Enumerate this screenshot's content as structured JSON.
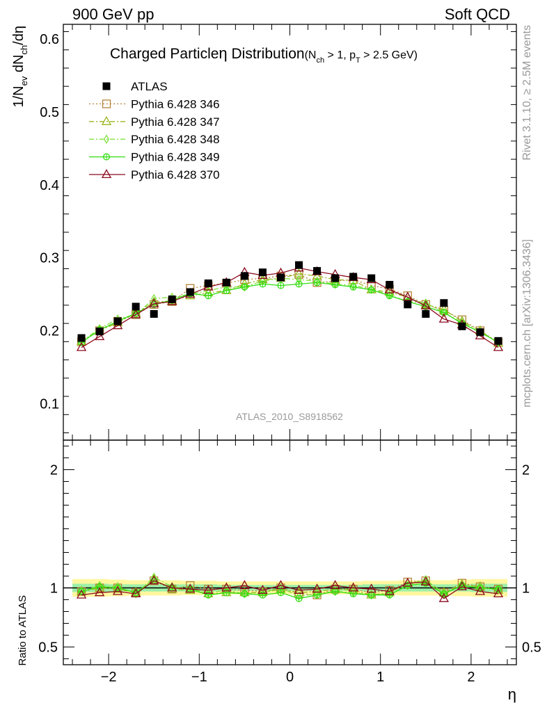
{
  "header": {
    "left": "900 GeV pp",
    "right": "Soft QCD"
  },
  "side_labels": {
    "rivet": "Rivet 3.1.10, ≥ 2.5M events",
    "mcplots": "mcplots.cern.ch [arXiv:1306.3436]"
  },
  "colors": {
    "atlas": "#000000",
    "p346": "#b5833a",
    "p347": "#9ab51d",
    "p348": "#7fe23b",
    "p349": "#33dd11",
    "p370": "#8b0a1e",
    "band_outer": "#fff7a0",
    "band_inner": "#9ef0a8",
    "watermark": "#999999"
  },
  "chart_data": {
    "type": "line",
    "title_main": "Charged Particle",
    "title_eta": "η",
    "title_rest": " Distribution",
    "title_sub": "(N",
    "title_sub_ch": "ch",
    "title_sub_mid": " > 1, p",
    "title_sub_T": "T",
    "title_sub_end": " > 2.5 GeV)",
    "ylabel_main": "1/N",
    "ylabel_ev": "ev",
    "ylabel_dN": " dN",
    "ylabel_ch": "ch",
    "ylabel_end": "/dη",
    "xlabel": "η",
    "ratio_ylabel": "Ratio to ATLAS",
    "watermark": "ATLAS_2010_S8918562",
    "xlim": [
      -2.5,
      2.5
    ],
    "ylim": [
      0.05,
      0.62
    ],
    "ratio_ylim": [
      0.35,
      2.25
    ],
    "x_ticks": [
      -2,
      -1,
      0,
      1,
      2
    ],
    "x_tick_labels": [
      "−2",
      "−1",
      "0",
      "1",
      "2"
    ],
    "y_ticks": [
      0.1,
      0.2,
      0.3,
      0.4,
      0.5,
      0.6
    ],
    "y_tick_labels": [
      "0.1",
      "0.2",
      "0.3",
      "0.4",
      "0.5",
      "0.6"
    ],
    "ratio_ticks": [
      0.5,
      1,
      2
    ],
    "ratio_tick_labels": [
      "0.5",
      "1",
      "2"
    ],
    "legend_position": "top-left",
    "x": [
      -2.3,
      -2.1,
      -1.9,
      -1.7,
      -1.5,
      -1.3,
      -1.1,
      -0.9,
      -0.7,
      -0.5,
      -0.3,
      -0.1,
      0.1,
      0.3,
      0.5,
      0.7,
      0.9,
      1.1,
      1.3,
      1.5,
      1.7,
      1.9,
      2.1,
      2.3
    ],
    "series": [
      {
        "name": "ATLAS",
        "key": "atlas",
        "marker": "square",
        "values": [
          0.19,
          0.199,
          0.213,
          0.233,
          0.223,
          0.243,
          0.253,
          0.265,
          0.266,
          0.275,
          0.28,
          0.273,
          0.29,
          0.282,
          0.272,
          0.274,
          0.272,
          0.263,
          0.236,
          0.223,
          0.238,
          0.206,
          0.198,
          0.186
        ],
        "ratio": [
          1.0,
          1.0,
          1.0,
          1.0,
          1.0,
          1.0,
          1.0,
          1.0,
          1.0,
          1.0,
          1.0,
          1.0,
          1.0,
          1.0,
          1.0,
          1.0,
          1.0,
          1.0,
          1.0,
          1.0,
          1.0,
          1.0,
          1.0,
          1.0
        ]
      },
      {
        "name": "Pythia 6.428 346",
        "key": "p346",
        "marker": "open-square",
        "values": [
          0.185,
          0.2,
          0.213,
          0.222,
          0.236,
          0.24,
          0.258,
          0.262,
          0.265,
          0.27,
          0.272,
          0.275,
          0.277,
          0.266,
          0.268,
          0.27,
          0.262,
          0.257,
          0.248,
          0.236,
          0.228,
          0.215,
          0.2,
          0.184
        ],
        "ratio": [
          0.97,
          1.0,
          1.0,
          0.96,
          1.06,
          0.99,
          1.02,
          0.99,
          0.99,
          0.98,
          0.97,
          1.0,
          0.95,
          0.94,
          0.99,
          0.99,
          0.96,
          0.98,
          1.05,
          1.06,
          0.96,
          1.04,
          1.01,
          0.99
        ]
      },
      {
        "name": "Pythia 6.428 347",
        "key": "p347",
        "marker": "open-triangle",
        "values": [
          0.185,
          0.2,
          0.211,
          0.224,
          0.239,
          0.241,
          0.248,
          0.252,
          0.255,
          0.264,
          0.27,
          0.272,
          0.278,
          0.275,
          0.27,
          0.269,
          0.256,
          0.253,
          0.246,
          0.236,
          0.229,
          0.213,
          0.2,
          0.183
        ],
        "ratio": [
          0.97,
          1.0,
          0.99,
          0.96,
          1.07,
          0.99,
          0.98,
          0.95,
          0.96,
          0.96,
          0.96,
          0.99,
          0.96,
          0.97,
          0.99,
          0.98,
          0.94,
          0.96,
          1.04,
          1.06,
          0.96,
          1.03,
          1.01,
          0.98
        ]
      },
      {
        "name": "Pythia 6.428 348",
        "key": "p348",
        "marker": "open-diamond",
        "values": [
          0.185,
          0.203,
          0.216,
          0.222,
          0.244,
          0.246,
          0.25,
          0.255,
          0.26,
          0.26,
          0.268,
          0.272,
          0.27,
          0.268,
          0.264,
          0.262,
          0.257,
          0.249,
          0.24,
          0.238,
          0.225,
          0.211,
          0.198,
          0.184
        ],
        "ratio": [
          0.97,
          1.02,
          1.01,
          0.95,
          1.09,
          1.01,
          0.99,
          0.96,
          0.98,
          0.95,
          0.96,
          1.0,
          0.93,
          0.95,
          0.97,
          0.96,
          0.94,
          0.95,
          1.02,
          1.07,
          0.95,
          1.02,
          1.0,
          0.99
        ]
      },
      {
        "name": "Pythia 6.428 349",
        "key": "p349",
        "marker": "open-circle-cross",
        "values": [
          0.184,
          0.201,
          0.213,
          0.224,
          0.236,
          0.242,
          0.251,
          0.248,
          0.255,
          0.26,
          0.264,
          0.262,
          0.264,
          0.266,
          0.263,
          0.26,
          0.256,
          0.248,
          0.24,
          0.233,
          0.225,
          0.21,
          0.198,
          0.184
        ],
        "ratio": [
          0.97,
          1.01,
          1.0,
          0.96,
          1.06,
          1.0,
          0.99,
          0.94,
          0.96,
          0.95,
          0.94,
          0.96,
          0.91,
          0.94,
          0.97,
          0.95,
          0.94,
          0.94,
          1.02,
          1.04,
          0.95,
          1.02,
          1.0,
          0.99
        ]
      },
      {
        "name": "Pythia 6.428 370",
        "key": "p370",
        "marker": "open-triangle",
        "values": [
          0.177,
          0.192,
          0.207,
          0.222,
          0.237,
          0.24,
          0.25,
          0.26,
          0.266,
          0.28,
          0.276,
          0.279,
          0.286,
          0.281,
          0.277,
          0.273,
          0.27,
          0.256,
          0.246,
          0.234,
          0.216,
          0.208,
          0.193,
          0.177
        ],
        "ratio": [
          0.94,
          0.96,
          0.97,
          0.95,
          1.06,
          1.0,
          0.99,
          0.98,
          1.0,
          1.02,
          0.98,
          1.02,
          0.98,
          0.99,
          1.02,
          1.0,
          0.99,
          0.97,
          1.04,
          1.05,
          0.91,
          1.01,
          0.97,
          0.95
        ]
      }
    ],
    "uncertainty_bands": {
      "inner": [
        0.035,
        0.035,
        0.03,
        0.03,
        0.03,
        0.03,
        0.03,
        0.03,
        0.025,
        0.025,
        0.025,
        0.025,
        0.025,
        0.025,
        0.025,
        0.025,
        0.03,
        0.03,
        0.03,
        0.03,
        0.03,
        0.03,
        0.035,
        0.035
      ],
      "outer": [
        0.075,
        0.075,
        0.07,
        0.065,
        0.065,
        0.065,
        0.06,
        0.06,
        0.055,
        0.055,
        0.055,
        0.055,
        0.055,
        0.055,
        0.055,
        0.055,
        0.06,
        0.06,
        0.065,
        0.065,
        0.065,
        0.07,
        0.075,
        0.075
      ]
    }
  }
}
